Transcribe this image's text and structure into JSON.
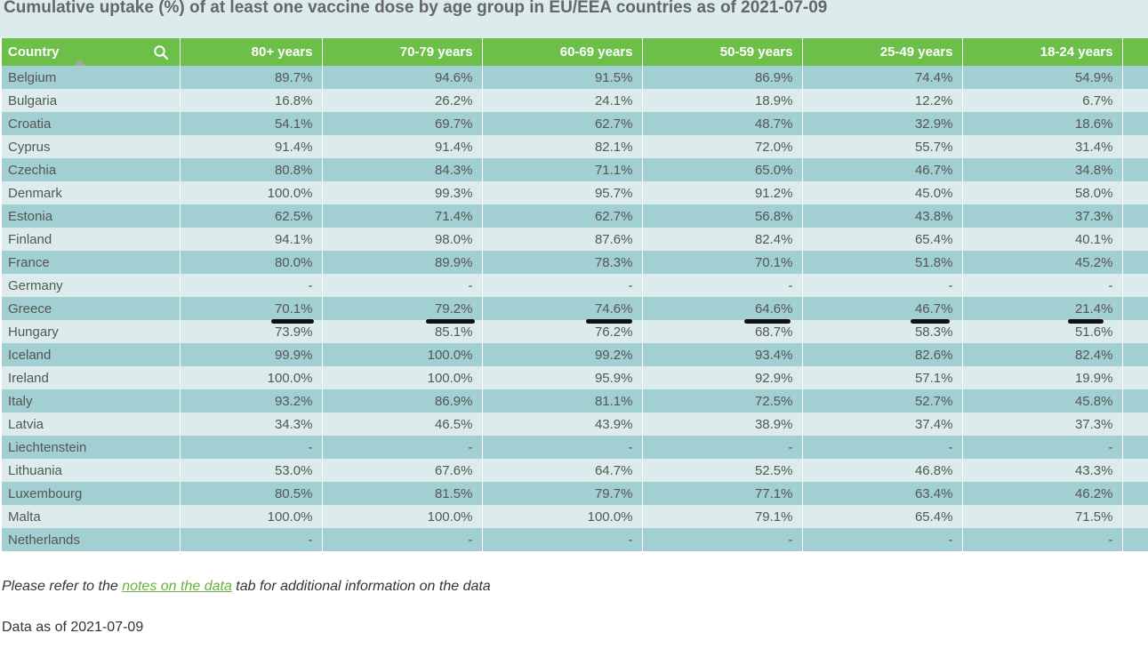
{
  "title": "Cumulative uptake (%) of at least one vaccine dose by age group in EU/EEA countries as of 2021-07-09",
  "table": {
    "headers": [
      "Country",
      "80+ years",
      "70-79 years",
      "60-69 years",
      "50-59 years",
      "25-49 years",
      "18-24 years"
    ],
    "rows": [
      [
        "Belgium",
        "89.7%",
        "94.6%",
        "91.5%",
        "86.9%",
        "74.4%",
        "54.9%"
      ],
      [
        "Bulgaria",
        "16.8%",
        "26.2%",
        "24.1%",
        "18.9%",
        "12.2%",
        "6.7%"
      ],
      [
        "Croatia",
        "54.1%",
        "69.7%",
        "62.7%",
        "48.7%",
        "32.9%",
        "18.6%"
      ],
      [
        "Cyprus",
        "91.4%",
        "91.4%",
        "82.1%",
        "72.0%",
        "55.7%",
        "31.4%"
      ],
      [
        "Czechia",
        "80.8%",
        "84.3%",
        "71.1%",
        "65.0%",
        "46.7%",
        "34.8%"
      ],
      [
        "Denmark",
        "100.0%",
        "99.3%",
        "95.7%",
        "91.2%",
        "45.0%",
        "58.0%"
      ],
      [
        "Estonia",
        "62.5%",
        "71.4%",
        "62.7%",
        "56.8%",
        "43.8%",
        "37.3%"
      ],
      [
        "Finland",
        "94.1%",
        "98.0%",
        "87.6%",
        "82.4%",
        "65.4%",
        "40.1%"
      ],
      [
        "France",
        "80.0%",
        "89.9%",
        "78.3%",
        "70.1%",
        "51.8%",
        "45.2%"
      ],
      [
        "Germany",
        "-",
        "-",
        "-",
        "-",
        "-",
        "-"
      ],
      [
        "Greece",
        "70.1%",
        "79.2%",
        "74.6%",
        "64.6%",
        "46.7%",
        "21.4%"
      ],
      [
        "Hungary",
        "73.9%",
        "85.1%",
        "76.2%",
        "68.7%",
        "58.3%",
        "51.6%"
      ],
      [
        "Iceland",
        "99.9%",
        "100.0%",
        "99.2%",
        "93.4%",
        "82.6%",
        "82.4%"
      ],
      [
        "Ireland",
        "100.0%",
        "100.0%",
        "95.9%",
        "92.9%",
        "57.1%",
        "19.9%"
      ],
      [
        "Italy",
        "93.2%",
        "86.9%",
        "81.1%",
        "72.5%",
        "52.7%",
        "45.8%"
      ],
      [
        "Latvia",
        "34.3%",
        "46.5%",
        "43.9%",
        "38.9%",
        "37.4%",
        "37.3%"
      ],
      [
        "Liechtenstein",
        "-",
        "-",
        "-",
        "-",
        "-",
        "-"
      ],
      [
        "Lithuania",
        "53.0%",
        "67.6%",
        "64.7%",
        "52.5%",
        "46.8%",
        "43.3%"
      ],
      [
        "Luxembourg",
        "80.5%",
        "81.5%",
        "79.7%",
        "77.1%",
        "63.4%",
        "46.2%"
      ],
      [
        "Malta",
        "100.0%",
        "100.0%",
        "100.0%",
        "79.1%",
        "65.4%",
        "71.5%"
      ],
      [
        "Netherlands",
        "-",
        "-",
        "-",
        "-",
        "-",
        "-"
      ]
    ]
  },
  "icons": {
    "search": "search-icon",
    "sort": "sort-ascending-icon"
  },
  "note": {
    "prefix": "Please refer to the ",
    "link": "notes on the data",
    "suffix": " tab for additional information on the data"
  },
  "as_of": "Data as of 2021-07-09",
  "colors": {
    "header": "#6cc04a",
    "row_dark": "#a2cfd2",
    "row_light": "#dcecec",
    "link": "#6cb040"
  }
}
